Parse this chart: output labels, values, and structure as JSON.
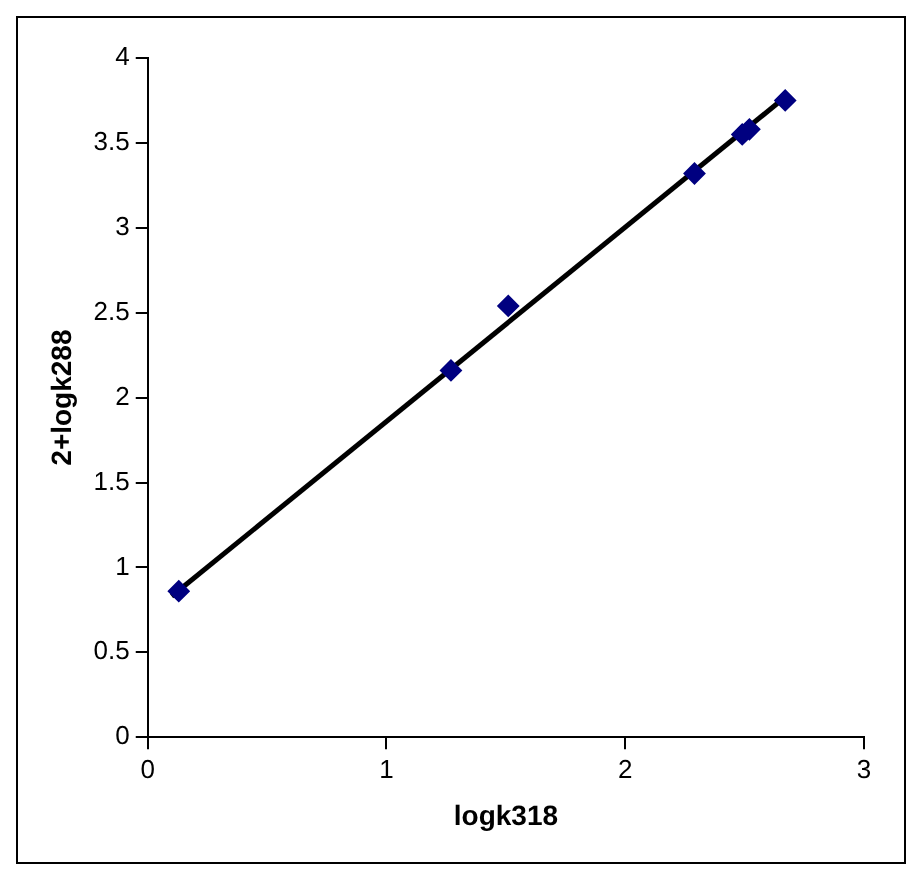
{
  "chart_data": {
    "type": "scatter",
    "xlabel": "logk318",
    "ylabel": "2+logk288",
    "xlim": [
      0,
      3
    ],
    "ylim": [
      0,
      4
    ],
    "xticks": [
      0,
      1,
      2,
      3
    ],
    "yticks": [
      0,
      0.5,
      1,
      1.5,
      2,
      2.5,
      3,
      3.5,
      4
    ],
    "grid": false,
    "legend": false,
    "marker": "diamond",
    "series": [
      {
        "type": "scatter",
        "color": "#000080",
        "x": [
          0.13,
          1.27,
          1.51,
          2.29,
          2.49,
          2.52,
          2.67
        ],
        "values": [
          0.86,
          2.16,
          2.54,
          3.32,
          3.55,
          3.58,
          3.75
        ]
      },
      {
        "type": "line",
        "color": "#000000",
        "marker": "none",
        "line_style": "solid",
        "x": [
          0.1,
          2.67
        ],
        "values": [
          0.83,
          3.77
        ]
      }
    ]
  }
}
